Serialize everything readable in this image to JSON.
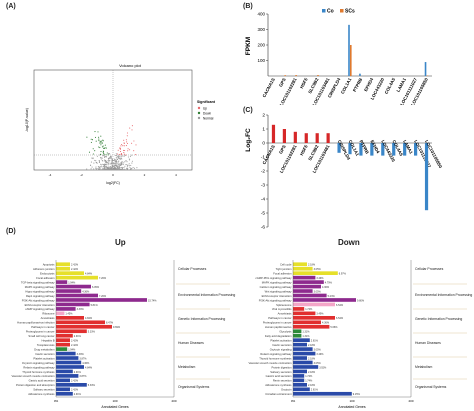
{
  "panels": {
    "a": "(A)",
    "b": "(B)",
    "c": "(C)",
    "d": "(D)"
  },
  "volcano": {
    "title": "Volcano plot",
    "xlabel": "log2(FC)",
    "ylabel": "-log10(P-value)",
    "legend_title": "Significant",
    "legend": [
      {
        "label": "Up",
        "color": "#e8676b"
      },
      {
        "label": "Down",
        "color": "#2e7d32"
      },
      {
        "label": "Normal",
        "color": "#999999"
      }
    ],
    "xticks": [
      "-4",
      "-2",
      "0",
      "2",
      "4"
    ]
  },
  "chart_data": [
    {
      "type": "bar",
      "ylabel": "FPKM",
      "ylim": [
        0,
        400
      ],
      "yticks": [
        "100",
        "200",
        "300",
        "400"
      ],
      "legend": "top-center",
      "categories": [
        "CACNA1S",
        "GPS",
        "LOC101102281",
        "HSF5",
        "SLC9B2",
        "LOC101103481",
        "CRISPLD4",
        "COL1A1",
        "PTPRB",
        "EFHD4",
        "LOC443220",
        "COL4A5",
        "LAMA1",
        "LOC101111027",
        "LOC101105850"
      ],
      "series": [
        {
          "name": "Co",
          "color": "#3a86c8",
          "values": [
            0,
            0,
            0,
            0,
            0,
            0,
            0,
            330,
            15,
            0,
            0,
            0,
            0,
            0,
            90
          ]
        },
        {
          "name": "SCs",
          "color": "#e07a2e",
          "values": [
            0,
            5,
            6,
            0,
            6,
            0,
            0,
            200,
            0,
            0,
            0,
            0,
            0,
            0,
            3
          ]
        }
      ]
    },
    {
      "type": "bar",
      "ylabel": "Log₂FC",
      "ylim": [
        -6,
        2
      ],
      "yticks": [
        "2",
        "1",
        "0",
        "-1",
        "-2",
        "-3",
        "-4",
        "-5",
        "-6"
      ],
      "categories": [
        "CACNA1S",
        "GPS",
        "LOC101102281",
        "HSF5",
        "SLC9B2",
        "LOC101103481",
        "CRISPLD4",
        "COL1A1",
        "PTPRB",
        "EFHD4",
        "LOC443220",
        "COL4A5",
        "LAMA1",
        "LOC101111027",
        "LOC101105850"
      ],
      "series": [
        {
          "name": "",
          "values": [
            1.3,
            1.0,
            0.8,
            0.7,
            0.7,
            0.7,
            -0.7,
            -0.8,
            -0.9,
            -0.9,
            -0.9,
            -0.9,
            -0.9,
            -0.9,
            -4.8
          ]
        }
      ]
    }
  ],
  "kegg": {
    "up_title": "Up",
    "down_title": "Down",
    "xlabel": "Annotated Genes",
    "up_xticks": [
      "0%",
      "100",
      "200"
    ],
    "down_xticks": [
      "0%",
      "100",
      "200"
    ],
    "categories": [
      "Cellular Processes",
      "Environmental Information Processing",
      "Genetic Information Processing",
      "Human Diseases",
      "Metabolism",
      "Organismal Systems"
    ],
    "up_bars": [
      {
        "label": "Apoptosis",
        "value": 10,
        "pct": "2.42%",
        "color": "#e6e02a"
      },
      {
        "label": "Adherens junction",
        "value": 10,
        "pct": "2.42%",
        "color": "#e6e02a"
      },
      {
        "label": "Endocytosis",
        "value": 20,
        "pct": "4.84%",
        "color": "#e6e02a"
      },
      {
        "label": "Focal adhesion",
        "value": 30,
        "pct": "7.26%",
        "color": "#e6e02a"
      },
      {
        "label": "TGF-beta signaling pathway",
        "value": 8,
        "pct": "1.94%",
        "color": "#8e2a8e"
      },
      {
        "label": "MAPK signaling pathway",
        "value": 25,
        "pct": "6.05%",
        "color": "#8e2a8e"
      },
      {
        "label": "Hippo signaling pathway",
        "value": 18,
        "pct": "4.36%",
        "color": "#8e2a8e"
      },
      {
        "label": "Rap1 signaling pathway",
        "value": 30,
        "pct": "7.26%",
        "color": "#8e2a8e"
      },
      {
        "label": "PI3K-Akt signaling pathway",
        "value": 65,
        "pct": "15.74%",
        "color": "#8e2a8e"
      },
      {
        "label": "ECM-receptor interaction",
        "value": 24,
        "pct": "5.81%",
        "color": "#8e2a8e"
      },
      {
        "label": "cAMP signaling pathway",
        "value": 14,
        "pct": "3.39%",
        "color": "#8e2a8e"
      },
      {
        "label": "Ribosome",
        "value": 6,
        "pct": "1.45%",
        "color": "#f4a6c8"
      },
      {
        "label": "Amoebiasis",
        "value": 20,
        "pct": "4.84%",
        "color": "#e12f2f"
      },
      {
        "label": "Human papillomavirus infection",
        "value": 35,
        "pct": "8.47%",
        "color": "#e12f2f"
      },
      {
        "label": "Pathways in cancer",
        "value": 40,
        "pct": "9.69%",
        "color": "#e12f2f"
      },
      {
        "label": "Proteoglycans in cancer",
        "value": 22,
        "pct": "5.33%",
        "color": "#e12f2f"
      },
      {
        "label": "Small cell lung cancer",
        "value": 12,
        "pct": "2.91%",
        "color": "#e12f2f"
      },
      {
        "label": "Hepatitis B",
        "value": 10,
        "pct": "2.42%",
        "color": "#e12f2f"
      },
      {
        "label": "Toxoplasmosis",
        "value": 10,
        "pct": "2.42%",
        "color": "#e12f2f"
      },
      {
        "label": "Drug metabolism",
        "value": 8,
        "pct": "1.94%",
        "color": "#2e8b3a"
      },
      {
        "label": "Insulin secretion",
        "value": 14,
        "pct": "3.39%",
        "color": "#2a4aa8"
      },
      {
        "label": "Platelet activation",
        "value": 16,
        "pct": "3.87%",
        "color": "#2a4aa8"
      },
      {
        "label": "Oxytocin signaling pathway",
        "value": 18,
        "pct": "4.36%",
        "color": "#2a4aa8"
      },
      {
        "label": "Relaxin signaling pathway",
        "value": 20,
        "pct": "4.84%",
        "color": "#2a4aa8"
      },
      {
        "label": "Thyroid hormone synthesis",
        "value": 12,
        "pct": "2.91%",
        "color": "#2a4aa8"
      },
      {
        "label": "Vascular smooth muscle contraction",
        "value": 16,
        "pct": "3.87%",
        "color": "#2a4aa8"
      },
      {
        "label": "Gastric acid secretion",
        "value": 10,
        "pct": "2.42%",
        "color": "#2a4aa8"
      },
      {
        "label": "Protein digestion and absorption",
        "value": 22,
        "pct": "5.33%",
        "color": "#2a4aa8"
      },
      {
        "label": "Salivary secretion",
        "value": 10,
        "pct": "2.42%",
        "color": "#2a4aa8"
      },
      {
        "label": "Aldosterone synthesis",
        "value": 12,
        "pct": "2.91%",
        "color": "#2a4aa8"
      }
    ],
    "down_bars": [
      {
        "label": "Cell cycle",
        "value": 10,
        "pct": "2.18%",
        "color": "#e6e02a"
      },
      {
        "label": "Tight junction",
        "value": 14,
        "pct": "3.05%",
        "color": "#e6e02a"
      },
      {
        "label": "Focal adhesion",
        "value": 32,
        "pct": "6.97%",
        "color": "#e6e02a"
      },
      {
        "label": "cGMP-PKG signaling pathway",
        "value": 16,
        "pct": "3.49%",
        "color": "#8e2a8e"
      },
      {
        "label": "MAPK signaling pathway",
        "value": 22,
        "pct": "4.79%",
        "color": "#8e2a8e"
      },
      {
        "label": "Calcium signaling pathway",
        "value": 20,
        "pct": "4.36%",
        "color": "#8e2a8e"
      },
      {
        "label": "Wnt signaling pathway",
        "value": 14,
        "pct": "3.05%",
        "color": "#8e2a8e"
      },
      {
        "label": "ECM-receptor interaction",
        "value": 24,
        "pct": "5.23%",
        "color": "#8e2a8e"
      },
      {
        "label": "PI3K-Akt signaling pathway",
        "value": 45,
        "pct": "9.80%",
        "color": "#8e2a8e"
      },
      {
        "label": "Spliceosome",
        "value": 30,
        "pct": "6.54%",
        "color": "#f4a6c8"
      },
      {
        "label": "Viral myocarditis",
        "value": 8,
        "pct": "1.74%",
        "color": "#e12f2f"
      },
      {
        "label": "Amoebiasis",
        "value": 16,
        "pct": "3.49%",
        "color": "#e12f2f"
      },
      {
        "label": "Pathways in cancer",
        "value": 30,
        "pct": "6.54%",
        "color": "#e12f2f"
      },
      {
        "label": "Proteoglycans in cancer",
        "value": 20,
        "pct": "4.36%",
        "color": "#e12f2f"
      },
      {
        "label": "Human papillomavirus",
        "value": 26,
        "pct": "5.66%",
        "color": "#e12f2f"
      },
      {
        "label": "Glycolysis",
        "value": 6,
        "pct": "1.31%",
        "color": "#2e8b3a"
      },
      {
        "label": "Fatty acid degradation",
        "value": 6,
        "pct": "1.31%",
        "color": "#2e8b3a"
      },
      {
        "label": "Platelet activation",
        "value": 12,
        "pct": "2.61%",
        "color": "#2a4aa8"
      },
      {
        "label": "Insulin secretion",
        "value": 10,
        "pct": "2.18%",
        "color": "#2a4aa8"
      },
      {
        "label": "Oxytocin signaling",
        "value": 14,
        "pct": "3.05%",
        "color": "#2a4aa8"
      },
      {
        "label": "Relaxin signaling pathway",
        "value": 16,
        "pct": "3.49%",
        "color": "#2a4aa8"
      },
      {
        "label": "Thyroid hormone synthesis",
        "value": 10,
        "pct": "2.18%",
        "color": "#2a4aa8"
      },
      {
        "label": "Vascular smooth muscle contraction",
        "value": 14,
        "pct": "3.05%",
        "color": "#2a4aa8"
      },
      {
        "label": "Protein digestion",
        "value": 18,
        "pct": "3.92%",
        "color": "#2a4aa8"
      },
      {
        "label": "Salivary secretion",
        "value": 10,
        "pct": "2.18%",
        "color": "#2a4aa8"
      },
      {
        "label": "Gastric acid secretion",
        "value": 8,
        "pct": "1.74%",
        "color": "#2a4aa8"
      },
      {
        "label": "Renin secretion",
        "value": 8,
        "pct": "1.74%",
        "color": "#2a4aa8"
      },
      {
        "label": "Aldosterone synthesis",
        "value": 10,
        "pct": "2.18%",
        "color": "#2a4aa8"
      },
      {
        "label": "Oxytocin",
        "value": 12,
        "pct": "2.61%",
        "color": "#2a4aa8"
      },
      {
        "label": "Circadian entrainment",
        "value": 42,
        "pct": "9.15%",
        "color": "#2a4aa8"
      }
    ]
  }
}
